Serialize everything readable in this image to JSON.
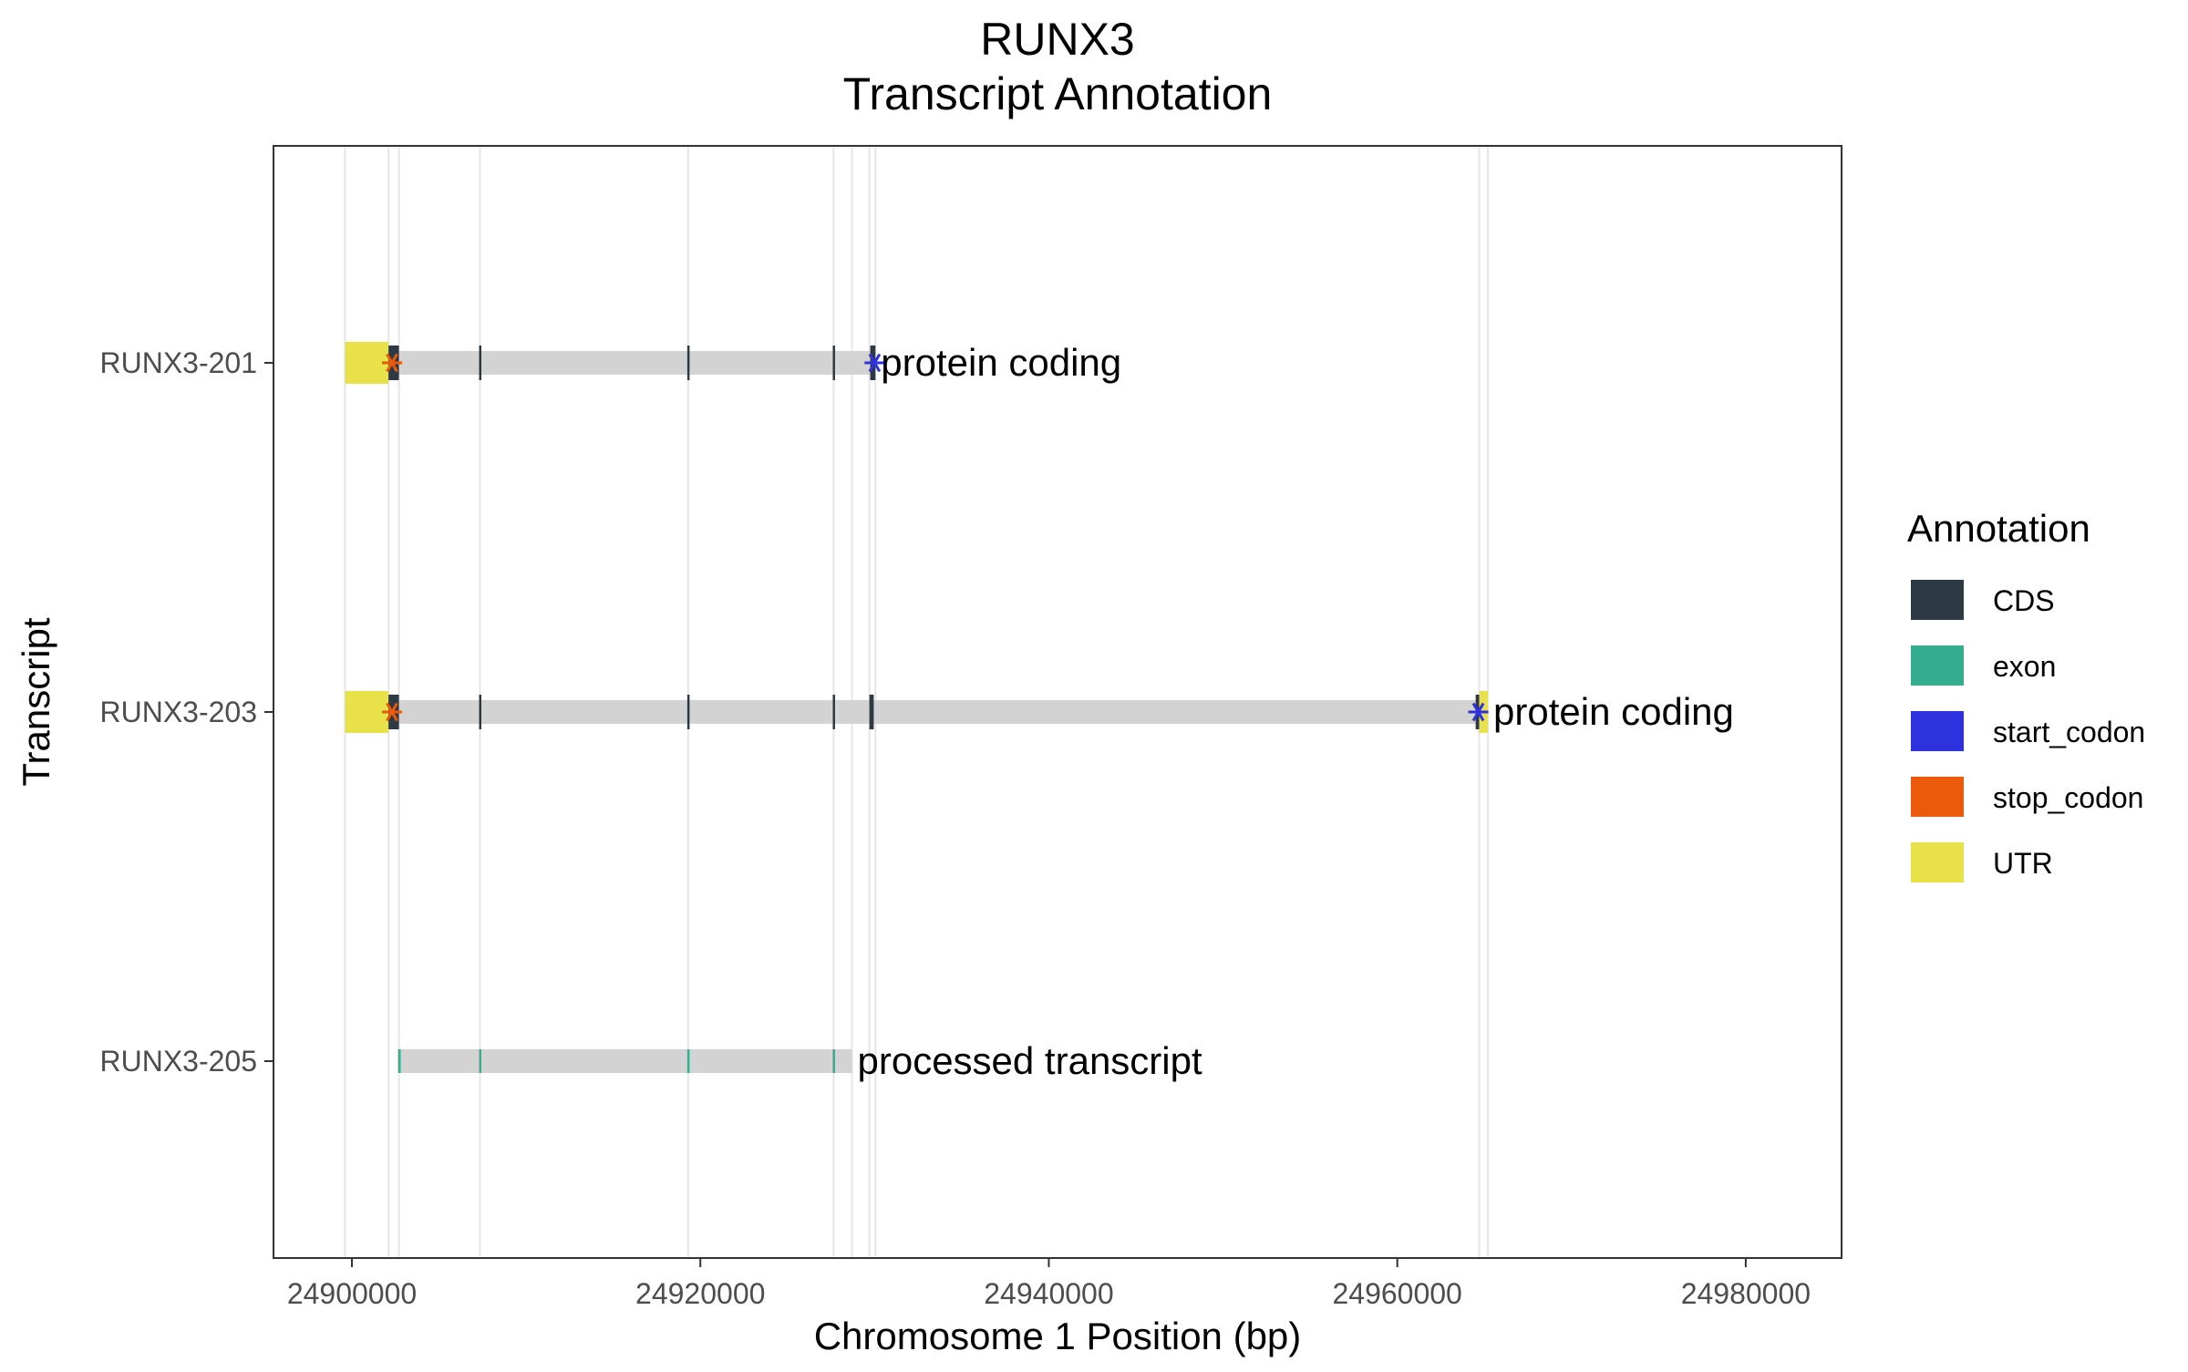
{
  "chart_data": {
    "type": "gene-track",
    "title": "RUNX3",
    "subtitle": "Transcript Annotation",
    "xlabel": "Chromosome 1 Position (bp)",
    "ylabel": "Transcript",
    "xlim": [
      24895500,
      24985500
    ],
    "x_ticks": [
      24900000,
      24920000,
      24940000,
      24960000,
      24980000
    ],
    "x_tick_labels": [
      "24900000",
      "24920000",
      "24940000",
      "24960000",
      "24980000"
    ],
    "grid": "vertical lines at feature boundaries",
    "legend": {
      "title": "Annotation",
      "position": "right",
      "entries": [
        {
          "label": "CDS",
          "color": "#2d3a44"
        },
        {
          "label": "exon",
          "color": "#35ad8f"
        },
        {
          "label": "start_codon",
          "color": "#2d32dc"
        },
        {
          "label": "stop_codon",
          "color": "#ea5a0a"
        },
        {
          "label": "UTR",
          "color": "#e8e14a"
        }
      ]
    },
    "guide_lines": [
      24899600,
      24902100,
      24902700,
      24907350,
      24919300,
      24927650,
      24928700,
      24929700,
      24930050,
      24964700,
      24965200
    ],
    "transcripts": [
      {
        "name": "RUNX3-205",
        "biotype": "processed transcript",
        "start": 24902700,
        "end": 24928700,
        "features": [
          {
            "type": "exon",
            "start": 24902650,
            "end": 24902800
          },
          {
            "type": "exon",
            "start": 24907300,
            "end": 24907420
          },
          {
            "type": "exon",
            "start": 24919250,
            "end": 24919370
          },
          {
            "type": "exon",
            "start": 24927600,
            "end": 24927720
          }
        ]
      },
      {
        "name": "RUNX3-203",
        "biotype": "protein coding",
        "start": 24899600,
        "end": 24965200,
        "features": [
          {
            "type": "UTR",
            "start": 24899600,
            "end": 24902100
          },
          {
            "type": "CDS",
            "start": 24902100,
            "end": 24902700
          },
          {
            "type": "CDS",
            "start": 24907300,
            "end": 24907420
          },
          {
            "type": "CDS",
            "start": 24919250,
            "end": 24919370
          },
          {
            "type": "CDS",
            "start": 24927600,
            "end": 24927720
          },
          {
            "type": "CDS",
            "start": 24929700,
            "end": 24929950
          },
          {
            "type": "CDS",
            "start": 24964500,
            "end": 24964700
          },
          {
            "type": "UTR",
            "start": 24964700,
            "end": 24965200
          },
          {
            "type": "stop_codon",
            "start": 24902300,
            "end": 24902300
          },
          {
            "type": "start_codon",
            "start": 24964650,
            "end": 24964650
          }
        ]
      },
      {
        "name": "RUNX3-201",
        "biotype": "protein coding",
        "start": 24899600,
        "end": 24930050,
        "features": [
          {
            "type": "UTR",
            "start": 24899600,
            "end": 24902100
          },
          {
            "type": "CDS",
            "start": 24902100,
            "end": 24902700
          },
          {
            "type": "CDS",
            "start": 24907300,
            "end": 24907420
          },
          {
            "type": "CDS",
            "start": 24919250,
            "end": 24919370
          },
          {
            "type": "CDS",
            "start": 24927600,
            "end": 24927720
          },
          {
            "type": "CDS",
            "start": 24929750,
            "end": 24930050
          },
          {
            "type": "stop_codon",
            "start": 24902300,
            "end": 24902300
          },
          {
            "type": "start_codon",
            "start": 24930000,
            "end": 24930000
          }
        ]
      }
    ]
  }
}
